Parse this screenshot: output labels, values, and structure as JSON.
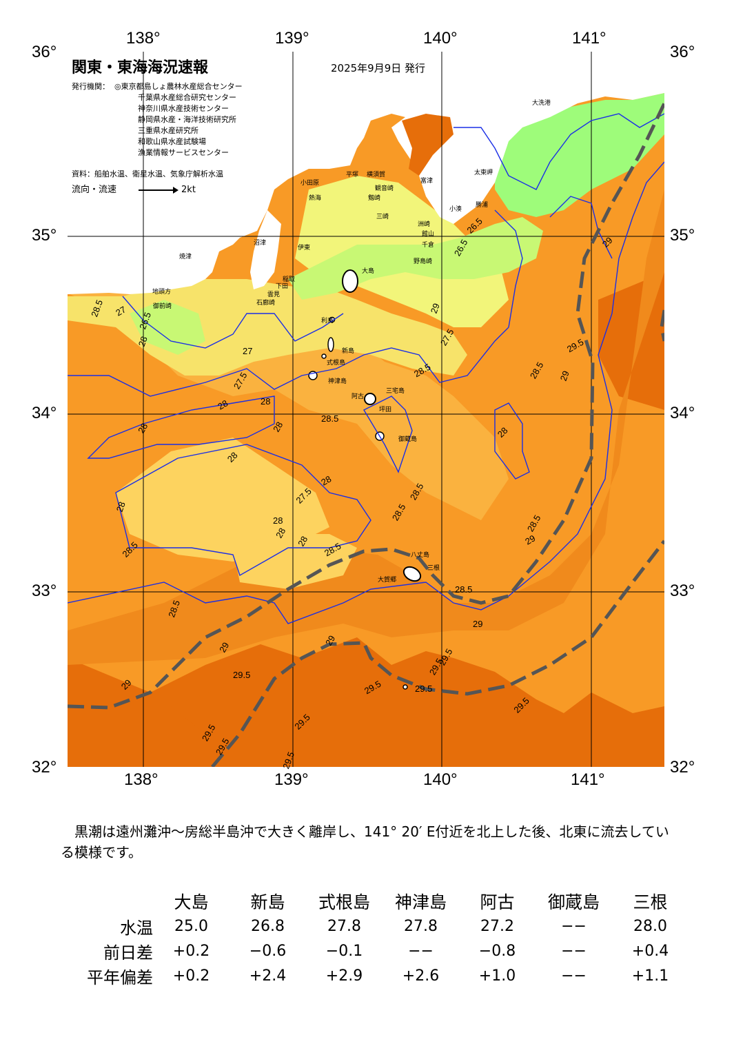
{
  "title": "関東・東海海況速報",
  "issued": "2025年9月9日 発行",
  "issuers_label": "発行機関：",
  "issuers": [
    "◎東京都島しょ農林水産総合センター",
    "千葉県水産総合研究センター",
    "神奈川県水産技術センター",
    "静岡県水産・海洋技術研究所",
    "三重県水産研究所",
    "和歌山県水産試験場",
    "漁業情報サービスセンター"
  ],
  "sources": "資料：船舶水温、衛星水温、気象庁解析水温",
  "legend": {
    "label": "流向・流速",
    "scale": "2kt"
  },
  "axes": {
    "lon_ticks": [
      "138°",
      "139°",
      "140°",
      "141°"
    ],
    "lat_ticks": [
      "36°",
      "35°",
      "34°",
      "33°",
      "32°"
    ]
  },
  "colors": {
    "t25": "#9efc7a",
    "t26": "#c8f874",
    "t26_5": "#f2f57a",
    "t27": "#f7e36a",
    "t27_5": "#fdd35f",
    "t28": "#fab23f",
    "t28_5": "#f89a26",
    "t29": "#f08a1c",
    "t29_5": "#e66e0a",
    "land": "#ffffff",
    "kuroshio": "#555555",
    "isoline": "#1a2ee6"
  },
  "places": [
    "大洗港",
    "太東岬",
    "小湊",
    "勝浦",
    "洲崎",
    "館山",
    "千倉",
    "野島崎",
    "富津",
    "横須賀",
    "観音崎",
    "剱崎",
    "三崎",
    "平塚",
    "小田原",
    "熱海",
    "伊東",
    "稲取",
    "下田",
    "石廊崎",
    "雲見",
    "沼津",
    "焼津",
    "御前崎",
    "地頭方",
    "大島",
    "利島",
    "新島",
    "式根島",
    "神津島",
    "三宅島",
    "阿古",
    "坪田",
    "御蔵島",
    "八丈島",
    "大賀郷",
    "三根"
  ],
  "isotherm_labels": [
    "26.5",
    "26.5",
    "26.5",
    "27",
    "27",
    "27.5",
    "27.5",
    "27.5",
    "28",
    "28",
    "28",
    "28",
    "28",
    "28",
    "28",
    "28",
    "28",
    "28",
    "28",
    "28",
    "28.5",
    "28.5",
    "28.5",
    "28.5",
    "28.5",
    "28.5",
    "28.5",
    "28.5",
    "28.5",
    "28.5",
    "28.5",
    "29",
    "29",
    "29",
    "29",
    "29",
    "29",
    "29",
    "29",
    "29.5",
    "29.5",
    "29.5",
    "29.5",
    "29.5",
    "29.5",
    "29.5",
    "29.5",
    "29.5",
    "29.5",
    "29.5"
  ],
  "commentary": "黒潮は遠州灘沖～房総半島沖で大きく離岸し、141° 20′ E付近を北上した後、北東に流去している模様です。",
  "observations": {
    "stations": [
      "大島",
      "新島",
      "式根島",
      "神津島",
      "阿古",
      "御蔵島",
      "三根"
    ],
    "rows": [
      {
        "label": "水温",
        "values": [
          "25.0",
          "26.8",
          "27.8",
          "27.8",
          "27.2",
          "−−",
          "28.0"
        ]
      },
      {
        "label": "前日差",
        "values": [
          "+0.2",
          "−0.6",
          "−0.1",
          "−−",
          "−0.8",
          "−−",
          "+0.4"
        ]
      },
      {
        "label": "平年偏差",
        "values": [
          "+0.2",
          "+2.4",
          "+2.9",
          "+2.6",
          "+1.0",
          "−−",
          "+1.1"
        ]
      }
    ]
  }
}
